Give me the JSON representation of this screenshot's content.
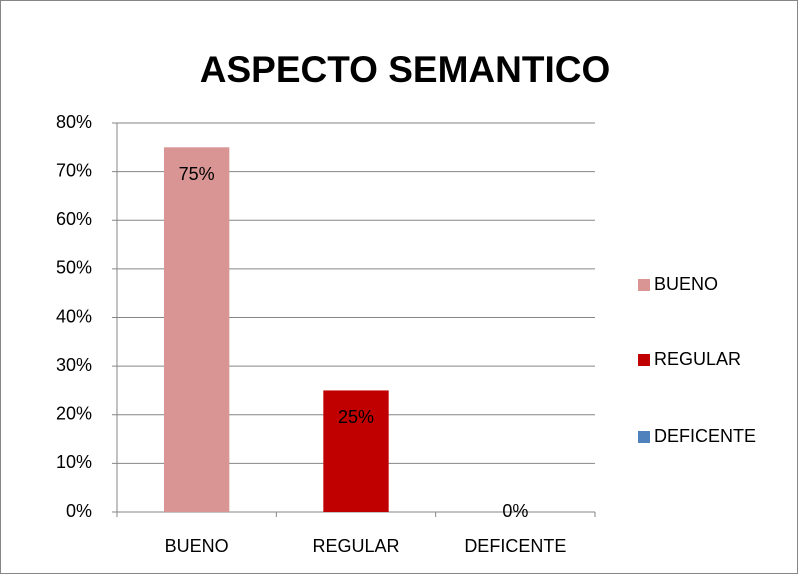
{
  "chart_data": {
    "type": "bar",
    "title": "ASPECTO SEMANTICO",
    "categories": [
      "BUENO",
      "REGULAR",
      "DEFICENTE"
    ],
    "values": [
      75,
      25,
      0
    ],
    "value_labels": [
      "75%",
      "25%",
      "0%"
    ],
    "colors": [
      "#d99594",
      "#c00000",
      "#4f81bd"
    ],
    "ylim": [
      0,
      80
    ],
    "yticks": [
      {
        "value": 0,
        "label": "0%"
      },
      {
        "value": 10,
        "label": "10%"
      },
      {
        "value": 20,
        "label": "20%"
      },
      {
        "value": 30,
        "label": "30%"
      },
      {
        "value": 40,
        "label": "40%"
      },
      {
        "value": 50,
        "label": "50%"
      },
      {
        "value": 60,
        "label": "60%"
      },
      {
        "value": 70,
        "label": "70%"
      },
      {
        "value": 80,
        "label": "80%"
      }
    ],
    "grid": true,
    "legend": "right"
  }
}
